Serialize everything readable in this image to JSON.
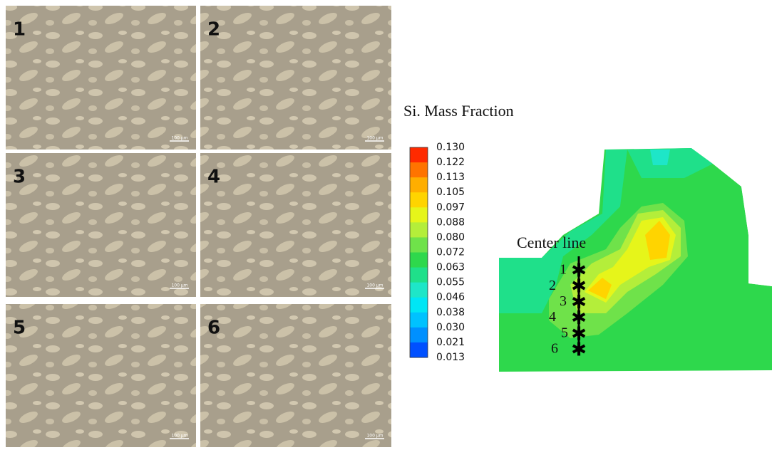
{
  "micrographs": {
    "panels": [
      {
        "label": "1",
        "scale_bar": "100 µm"
      },
      {
        "label": "2",
        "scale_bar": "100 µm"
      },
      {
        "label": "3",
        "scale_bar": "100 µm"
      },
      {
        "label": "4",
        "scale_bar": "100 µm"
      },
      {
        "label": "5",
        "scale_bar": "100 µm"
      },
      {
        "label": "6",
        "scale_bar": "100 µm"
      }
    ]
  },
  "colorbar": {
    "title": "Si. Mass Fraction",
    "labels": [
      "0.130",
      "0.122",
      "0.113",
      "0.105",
      "0.097",
      "0.088",
      "0.080",
      "0.072",
      "0.063",
      "0.055",
      "0.046",
      "0.038",
      "0.030",
      "0.021",
      "0.013"
    ],
    "colors": [
      "#ff2a00",
      "#ff7400",
      "#ffae00",
      "#ffd400",
      "#e6f51a",
      "#b4ee3a",
      "#6fe24a",
      "#2ed84c",
      "#1fe08a",
      "#1ee6c8",
      "#00e6f5",
      "#00c2ff",
      "#0090ff",
      "#0050ff"
    ]
  },
  "contour": {
    "center_line": "Center line",
    "points": [
      "1",
      "2",
      "3",
      "4",
      "5",
      "6"
    ]
  }
}
